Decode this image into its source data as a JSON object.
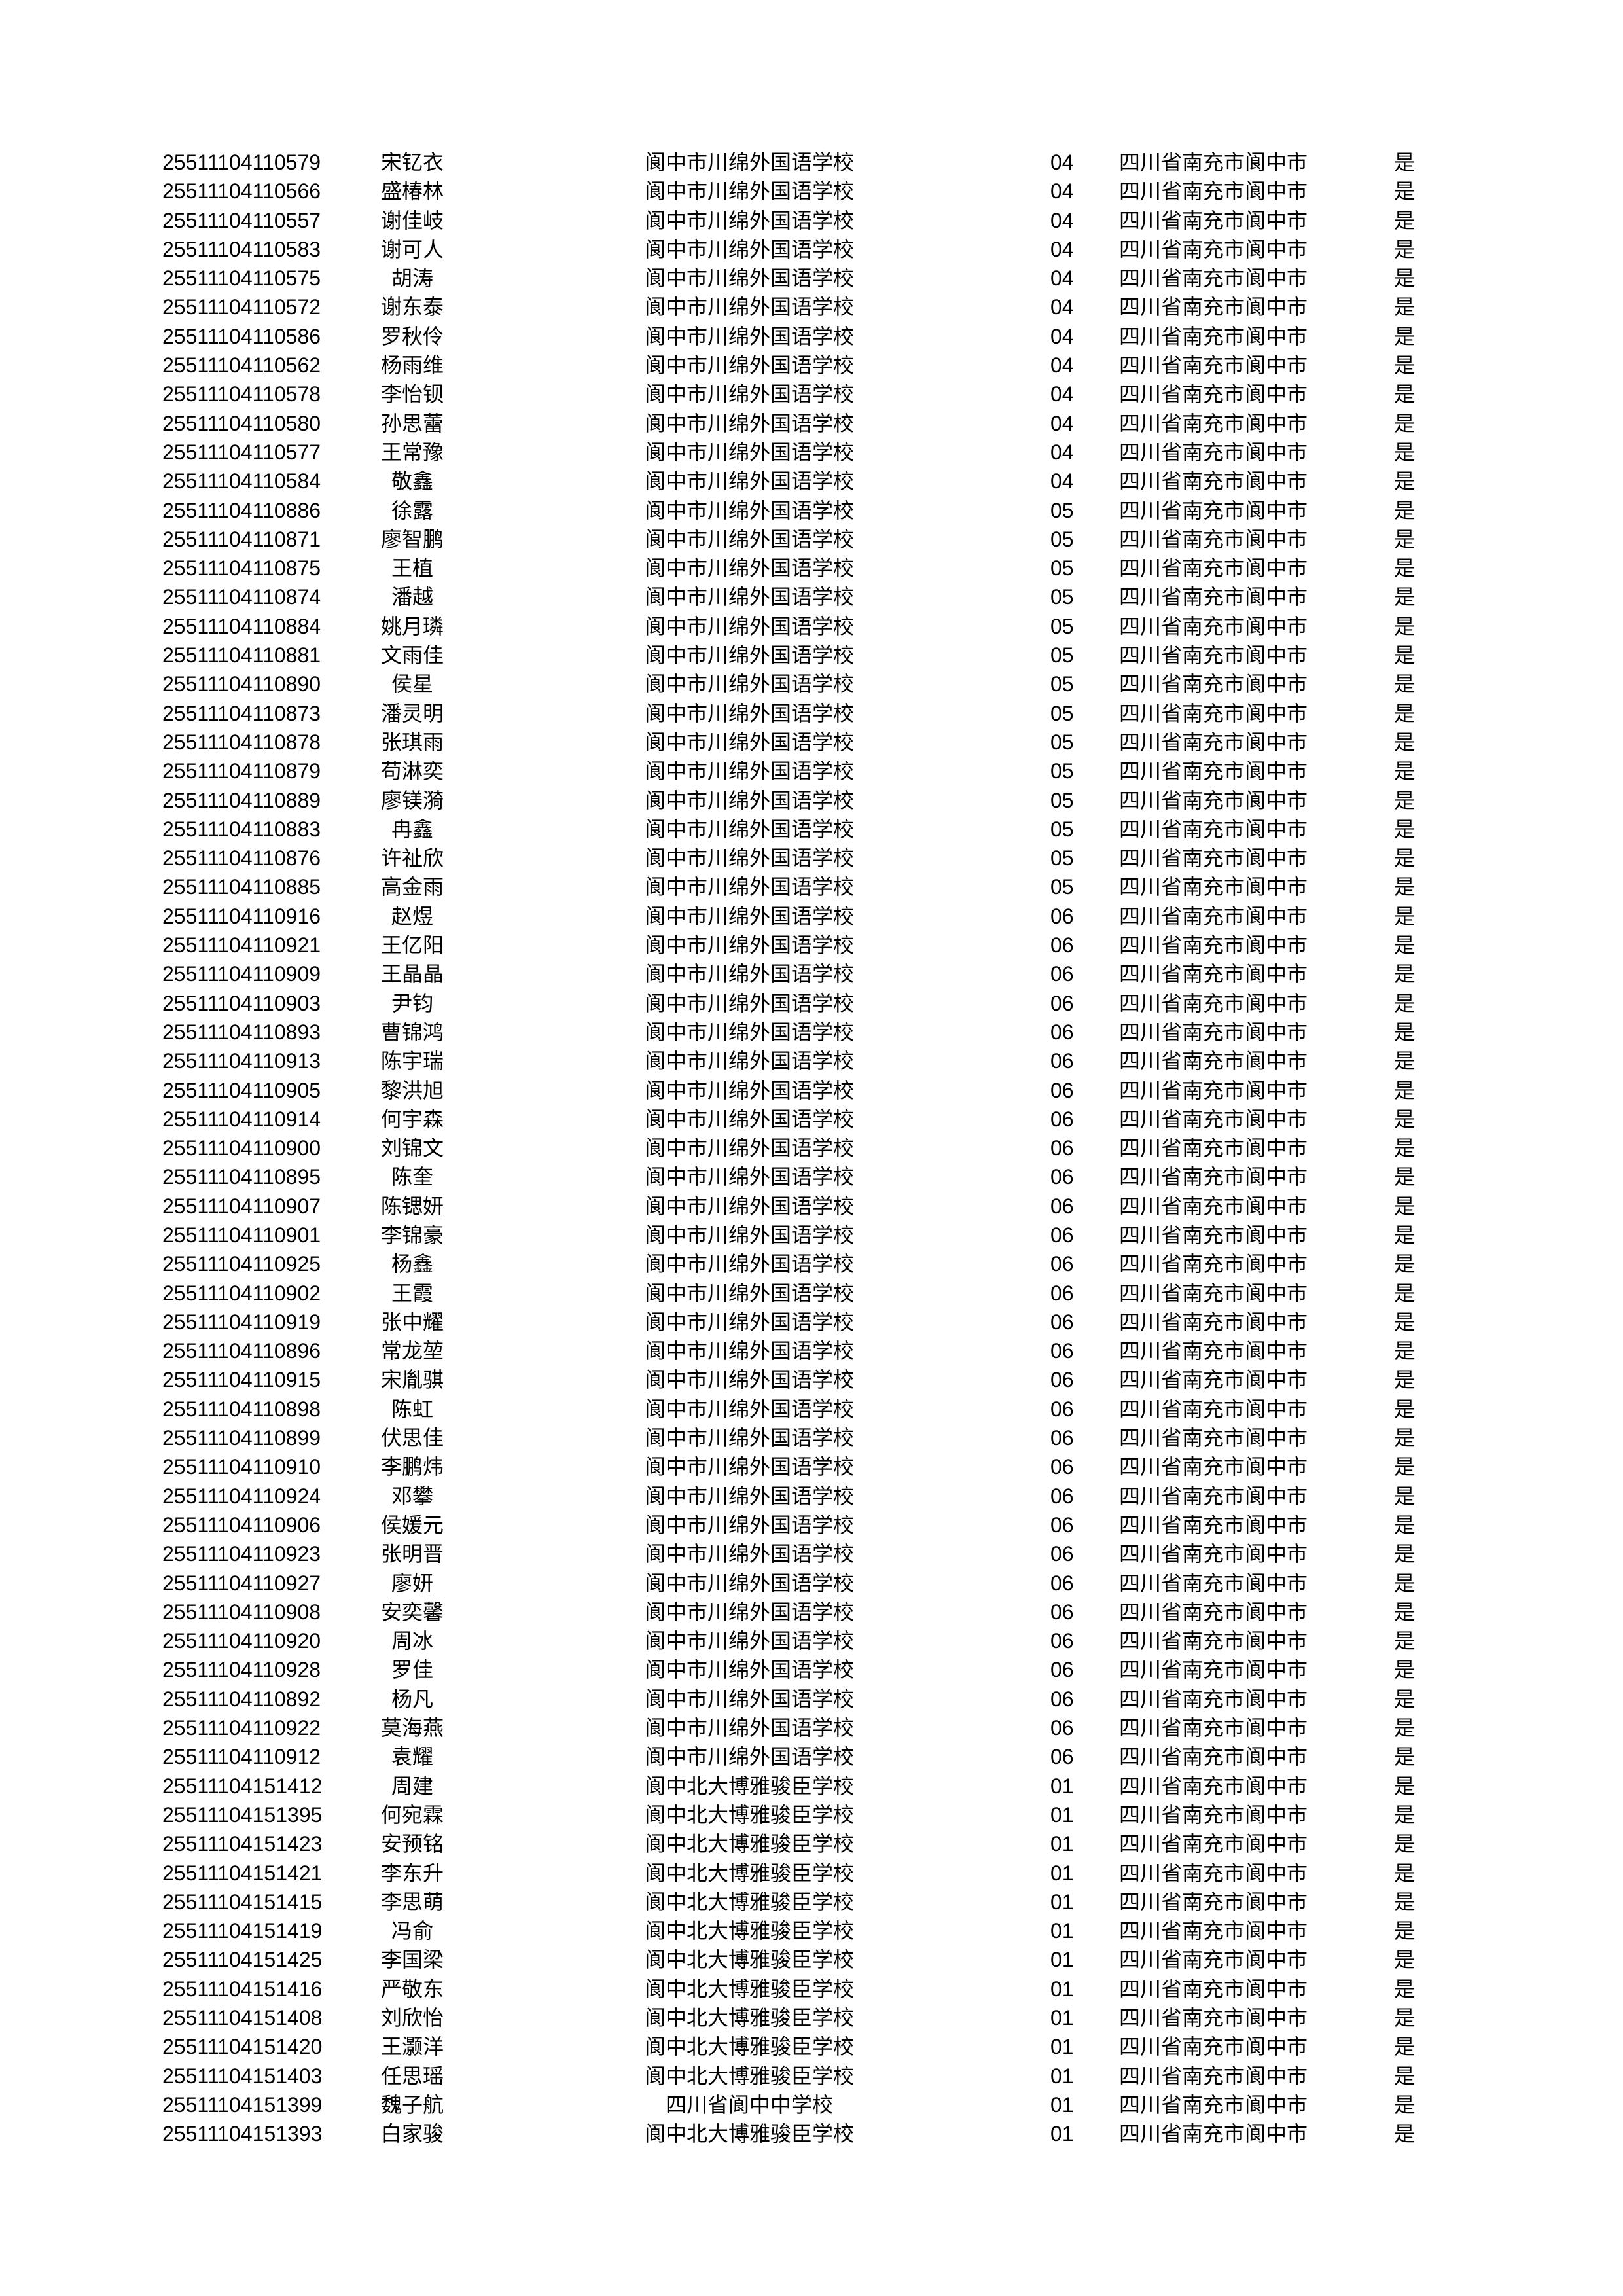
{
  "rows": [
    [
      "25511104110579",
      "宋钇衣",
      "阆中市川绵外国语学校",
      "04",
      "四川省南充市阆中市",
      "是"
    ],
    [
      "25511104110566",
      "盛椿林",
      "阆中市川绵外国语学校",
      "04",
      "四川省南充市阆中市",
      "是"
    ],
    [
      "25511104110557",
      "谢佳岐",
      "阆中市川绵外国语学校",
      "04",
      "四川省南充市阆中市",
      "是"
    ],
    [
      "25511104110583",
      "谢可人",
      "阆中市川绵外国语学校",
      "04",
      "四川省南充市阆中市",
      "是"
    ],
    [
      "25511104110575",
      "胡涛",
      "阆中市川绵外国语学校",
      "04",
      "四川省南充市阆中市",
      "是"
    ],
    [
      "25511104110572",
      "谢东泰",
      "阆中市川绵外国语学校",
      "04",
      "四川省南充市阆中市",
      "是"
    ],
    [
      "25511104110586",
      "罗秋伶",
      "阆中市川绵外国语学校",
      "04",
      "四川省南充市阆中市",
      "是"
    ],
    [
      "25511104110562",
      "杨雨维",
      "阆中市川绵外国语学校",
      "04",
      "四川省南充市阆中市",
      "是"
    ],
    [
      "25511104110578",
      "李怡钡",
      "阆中市川绵外国语学校",
      "04",
      "四川省南充市阆中市",
      "是"
    ],
    [
      "25511104110580",
      "孙思蕾",
      "阆中市川绵外国语学校",
      "04",
      "四川省南充市阆中市",
      "是"
    ],
    [
      "25511104110577",
      "王常豫",
      "阆中市川绵外国语学校",
      "04",
      "四川省南充市阆中市",
      "是"
    ],
    [
      "25511104110584",
      "敬鑫",
      "阆中市川绵外国语学校",
      "04",
      "四川省南充市阆中市",
      "是"
    ],
    [
      "25511104110886",
      "徐露",
      "阆中市川绵外国语学校",
      "05",
      "四川省南充市阆中市",
      "是"
    ],
    [
      "25511104110871",
      "廖智鹏",
      "阆中市川绵外国语学校",
      "05",
      "四川省南充市阆中市",
      "是"
    ],
    [
      "25511104110875",
      "王植",
      "阆中市川绵外国语学校",
      "05",
      "四川省南充市阆中市",
      "是"
    ],
    [
      "25511104110874",
      "潘越",
      "阆中市川绵外国语学校",
      "05",
      "四川省南充市阆中市",
      "是"
    ],
    [
      "25511104110884",
      "姚月璘",
      "阆中市川绵外国语学校",
      "05",
      "四川省南充市阆中市",
      "是"
    ],
    [
      "25511104110881",
      "文雨佳",
      "阆中市川绵外国语学校",
      "05",
      "四川省南充市阆中市",
      "是"
    ],
    [
      "25511104110890",
      "侯星",
      "阆中市川绵外国语学校",
      "05",
      "四川省南充市阆中市",
      "是"
    ],
    [
      "25511104110873",
      "潘灵明",
      "阆中市川绵外国语学校",
      "05",
      "四川省南充市阆中市",
      "是"
    ],
    [
      "25511104110878",
      "张琪雨",
      "阆中市川绵外国语学校",
      "05",
      "四川省南充市阆中市",
      "是"
    ],
    [
      "25511104110879",
      "苟淋奕",
      "阆中市川绵外国语学校",
      "05",
      "四川省南充市阆中市",
      "是"
    ],
    [
      "25511104110889",
      "廖镁漪",
      "阆中市川绵外国语学校",
      "05",
      "四川省南充市阆中市",
      "是"
    ],
    [
      "25511104110883",
      "冉鑫",
      "阆中市川绵外国语学校",
      "05",
      "四川省南充市阆中市",
      "是"
    ],
    [
      "25511104110876",
      "许祉欣",
      "阆中市川绵外国语学校",
      "05",
      "四川省南充市阆中市",
      "是"
    ],
    [
      "25511104110885",
      "高金雨",
      "阆中市川绵外国语学校",
      "05",
      "四川省南充市阆中市",
      "是"
    ],
    [
      "25511104110916",
      "赵煜",
      "阆中市川绵外国语学校",
      "06",
      "四川省南充市阆中市",
      "是"
    ],
    [
      "25511104110921",
      "王亿阳",
      "阆中市川绵外国语学校",
      "06",
      "四川省南充市阆中市",
      "是"
    ],
    [
      "25511104110909",
      "王晶晶",
      "阆中市川绵外国语学校",
      "06",
      "四川省南充市阆中市",
      "是"
    ],
    [
      "25511104110903",
      "尹钧",
      "阆中市川绵外国语学校",
      "06",
      "四川省南充市阆中市",
      "是"
    ],
    [
      "25511104110893",
      "曹锦鸿",
      "阆中市川绵外国语学校",
      "06",
      "四川省南充市阆中市",
      "是"
    ],
    [
      "25511104110913",
      "陈宇瑞",
      "阆中市川绵外国语学校",
      "06",
      "四川省南充市阆中市",
      "是"
    ],
    [
      "25511104110905",
      "黎洪旭",
      "阆中市川绵外国语学校",
      "06",
      "四川省南充市阆中市",
      "是"
    ],
    [
      "25511104110914",
      "何宇森",
      "阆中市川绵外国语学校",
      "06",
      "四川省南充市阆中市",
      "是"
    ],
    [
      "25511104110900",
      "刘锦文",
      "阆中市川绵外国语学校",
      "06",
      "四川省南充市阆中市",
      "是"
    ],
    [
      "25511104110895",
      "陈奎",
      "阆中市川绵外国语学校",
      "06",
      "四川省南充市阆中市",
      "是"
    ],
    [
      "25511104110907",
      "陈锶妍",
      "阆中市川绵外国语学校",
      "06",
      "四川省南充市阆中市",
      "是"
    ],
    [
      "25511104110901",
      "李锦豪",
      "阆中市川绵外国语学校",
      "06",
      "四川省南充市阆中市",
      "是"
    ],
    [
      "25511104110925",
      "杨鑫",
      "阆中市川绵外国语学校",
      "06",
      "四川省南充市阆中市",
      "是"
    ],
    [
      "25511104110902",
      "王霞",
      "阆中市川绵外国语学校",
      "06",
      "四川省南充市阆中市",
      "是"
    ],
    [
      "25511104110919",
      "张中耀",
      "阆中市川绵外国语学校",
      "06",
      "四川省南充市阆中市",
      "是"
    ],
    [
      "25511104110896",
      "常龙堃",
      "阆中市川绵外国语学校",
      "06",
      "四川省南充市阆中市",
      "是"
    ],
    [
      "25511104110915",
      "宋胤骐",
      "阆中市川绵外国语学校",
      "06",
      "四川省南充市阆中市",
      "是"
    ],
    [
      "25511104110898",
      "陈虹",
      "阆中市川绵外国语学校",
      "06",
      "四川省南充市阆中市",
      "是"
    ],
    [
      "25511104110899",
      "伏思佳",
      "阆中市川绵外国语学校",
      "06",
      "四川省南充市阆中市",
      "是"
    ],
    [
      "25511104110910",
      "李鹏炜",
      "阆中市川绵外国语学校",
      "06",
      "四川省南充市阆中市",
      "是"
    ],
    [
      "25511104110924",
      "邓攀",
      "阆中市川绵外国语学校",
      "06",
      "四川省南充市阆中市",
      "是"
    ],
    [
      "25511104110906",
      "侯媛元",
      "阆中市川绵外国语学校",
      "06",
      "四川省南充市阆中市",
      "是"
    ],
    [
      "25511104110923",
      "张明晋",
      "阆中市川绵外国语学校",
      "06",
      "四川省南充市阆中市",
      "是"
    ],
    [
      "25511104110927",
      "廖妍",
      "阆中市川绵外国语学校",
      "06",
      "四川省南充市阆中市",
      "是"
    ],
    [
      "25511104110908",
      "安奕馨",
      "阆中市川绵外国语学校",
      "06",
      "四川省南充市阆中市",
      "是"
    ],
    [
      "25511104110920",
      "周冰",
      "阆中市川绵外国语学校",
      "06",
      "四川省南充市阆中市",
      "是"
    ],
    [
      "25511104110928",
      "罗佳",
      "阆中市川绵外国语学校",
      "06",
      "四川省南充市阆中市",
      "是"
    ],
    [
      "25511104110892",
      "杨凡",
      "阆中市川绵外国语学校",
      "06",
      "四川省南充市阆中市",
      "是"
    ],
    [
      "25511104110922",
      "莫海燕",
      "阆中市川绵外国语学校",
      "06",
      "四川省南充市阆中市",
      "是"
    ],
    [
      "25511104110912",
      "袁耀",
      "阆中市川绵外国语学校",
      "06",
      "四川省南充市阆中市",
      "是"
    ],
    [
      "25511104151412",
      "周建",
      "阆中北大博雅骏臣学校",
      "01",
      "四川省南充市阆中市",
      "是"
    ],
    [
      "25511104151395",
      "何宛霖",
      "阆中北大博雅骏臣学校",
      "01",
      "四川省南充市阆中市",
      "是"
    ],
    [
      "25511104151423",
      "安预铭",
      "阆中北大博雅骏臣学校",
      "01",
      "四川省南充市阆中市",
      "是"
    ],
    [
      "25511104151421",
      "李东升",
      "阆中北大博雅骏臣学校",
      "01",
      "四川省南充市阆中市",
      "是"
    ],
    [
      "25511104151415",
      "李思萌",
      "阆中北大博雅骏臣学校",
      "01",
      "四川省南充市阆中市",
      "是"
    ],
    [
      "25511104151419",
      "冯俞",
      "阆中北大博雅骏臣学校",
      "01",
      "四川省南充市阆中市",
      "是"
    ],
    [
      "25511104151425",
      "李国梁",
      "阆中北大博雅骏臣学校",
      "01",
      "四川省南充市阆中市",
      "是"
    ],
    [
      "25511104151416",
      "严敬东",
      "阆中北大博雅骏臣学校",
      "01",
      "四川省南充市阆中市",
      "是"
    ],
    [
      "25511104151408",
      "刘欣怡",
      "阆中北大博雅骏臣学校",
      "01",
      "四川省南充市阆中市",
      "是"
    ],
    [
      "25511104151420",
      "王灏洋",
      "阆中北大博雅骏臣学校",
      "01",
      "四川省南充市阆中市",
      "是"
    ],
    [
      "25511104151403",
      "任思瑶",
      "阆中北大博雅骏臣学校",
      "01",
      "四川省南充市阆中市",
      "是"
    ],
    [
      "25511104151399",
      "魏子航",
      "四川省阆中中学校",
      "01",
      "四川省南充市阆中市",
      "是"
    ],
    [
      "25511104151393",
      "白家骏",
      "阆中北大博雅骏臣学校",
      "01",
      "四川省南充市阆中市",
      "是"
    ]
  ]
}
